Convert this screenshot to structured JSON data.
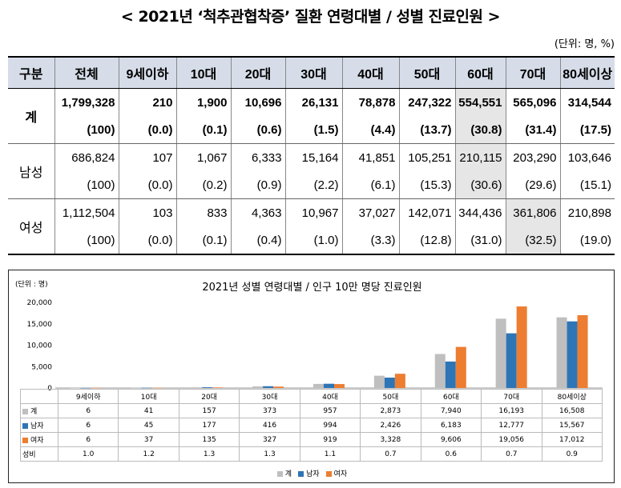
{
  "title": "< 2021년 ‘척추관협착증’ 질환 연령대별 / 성별 진료인원 >",
  "unit": "(단위: 명, %)",
  "table": {
    "headers": [
      "구분",
      "전체",
      "9세이하",
      "10대",
      "20대",
      "30대",
      "40대",
      "50대",
      "60대",
      "70대",
      "80세이상"
    ],
    "rows": [
      {
        "label": "계",
        "counts": [
          "1,799,328",
          "210",
          "1,900",
          "10,696",
          "26,131",
          "78,878",
          "247,322",
          "554,551",
          "565,096",
          "314,544"
        ],
        "pcts": [
          "(100)",
          "(0.0)",
          "(0.1)",
          "(0.6)",
          "(1.5)",
          "(4.4)",
          "(13.7)",
          "(30.8)",
          "(31.4)",
          "(17.5)"
        ]
      },
      {
        "label": "남성",
        "counts": [
          "686,824",
          "107",
          "1,067",
          "6,333",
          "15,164",
          "41,851",
          "105,251",
          "210,115",
          "203,290",
          "103,646"
        ],
        "pcts": [
          "(100)",
          "(0.0)",
          "(0.2)",
          "(0.9)",
          "(2.2)",
          "(6.1)",
          "(15.3)",
          "(30.6)",
          "(29.6)",
          "(15.1)"
        ]
      },
      {
        "label": "여성",
        "counts": [
          "1,112,504",
          "103",
          "833",
          "4,363",
          "10,967",
          "37,027",
          "142,071",
          "344,436",
          "361,806",
          "210,898"
        ],
        "pcts": [
          "(100)",
          "(0.0)",
          "(0.1)",
          "(0.4)",
          "(1.0)",
          "(3.3)",
          "(12.8)",
          "(31.0)",
          "(32.5)",
          "(19.0)"
        ]
      }
    ]
  },
  "chart_data": {
    "type": "bar",
    "title": "2021년 성별 연령대별 / 인구 10만 명당 진료인원",
    "unit": "(단위 : 명)",
    "categories": [
      "9세이하",
      "10대",
      "20대",
      "30대",
      "40대",
      "50대",
      "60대",
      "70대",
      "80세이상"
    ],
    "ylim": [
      0,
      20000
    ],
    "yticks": [
      "20,000",
      "15,000",
      "10,000",
      "5,000",
      "0"
    ],
    "series": [
      {
        "name": "계",
        "color": "#bfbfbf",
        "values": [
          6,
          41,
          157,
          373,
          957,
          2873,
          7940,
          16193,
          16508
        ],
        "labels": [
          "6",
          "41",
          "157",
          "373",
          "957",
          "2,873",
          "7,940",
          "16,193",
          "16,508"
        ]
      },
      {
        "name": "남자",
        "color": "#2e75b6",
        "values": [
          6,
          45,
          177,
          416,
          994,
          2426,
          6183,
          12777,
          15567
        ],
        "labels": [
          "6",
          "45",
          "177",
          "416",
          "994",
          "2,426",
          "6,183",
          "12,777",
          "15,567"
        ]
      },
      {
        "name": "여자",
        "color": "#ed7d31",
        "values": [
          6,
          37,
          135,
          327,
          919,
          3328,
          9606,
          19056,
          17012
        ],
        "labels": [
          "6",
          "37",
          "135",
          "327",
          "919",
          "3,328",
          "9,606",
          "19,056",
          "17,012"
        ]
      }
    ],
    "ratio": {
      "name": "성비",
      "labels": [
        "1.0",
        "1.2",
        "1.3",
        "1.3",
        "1.1",
        "0.7",
        "0.6",
        "0.7",
        "0.9"
      ]
    }
  }
}
